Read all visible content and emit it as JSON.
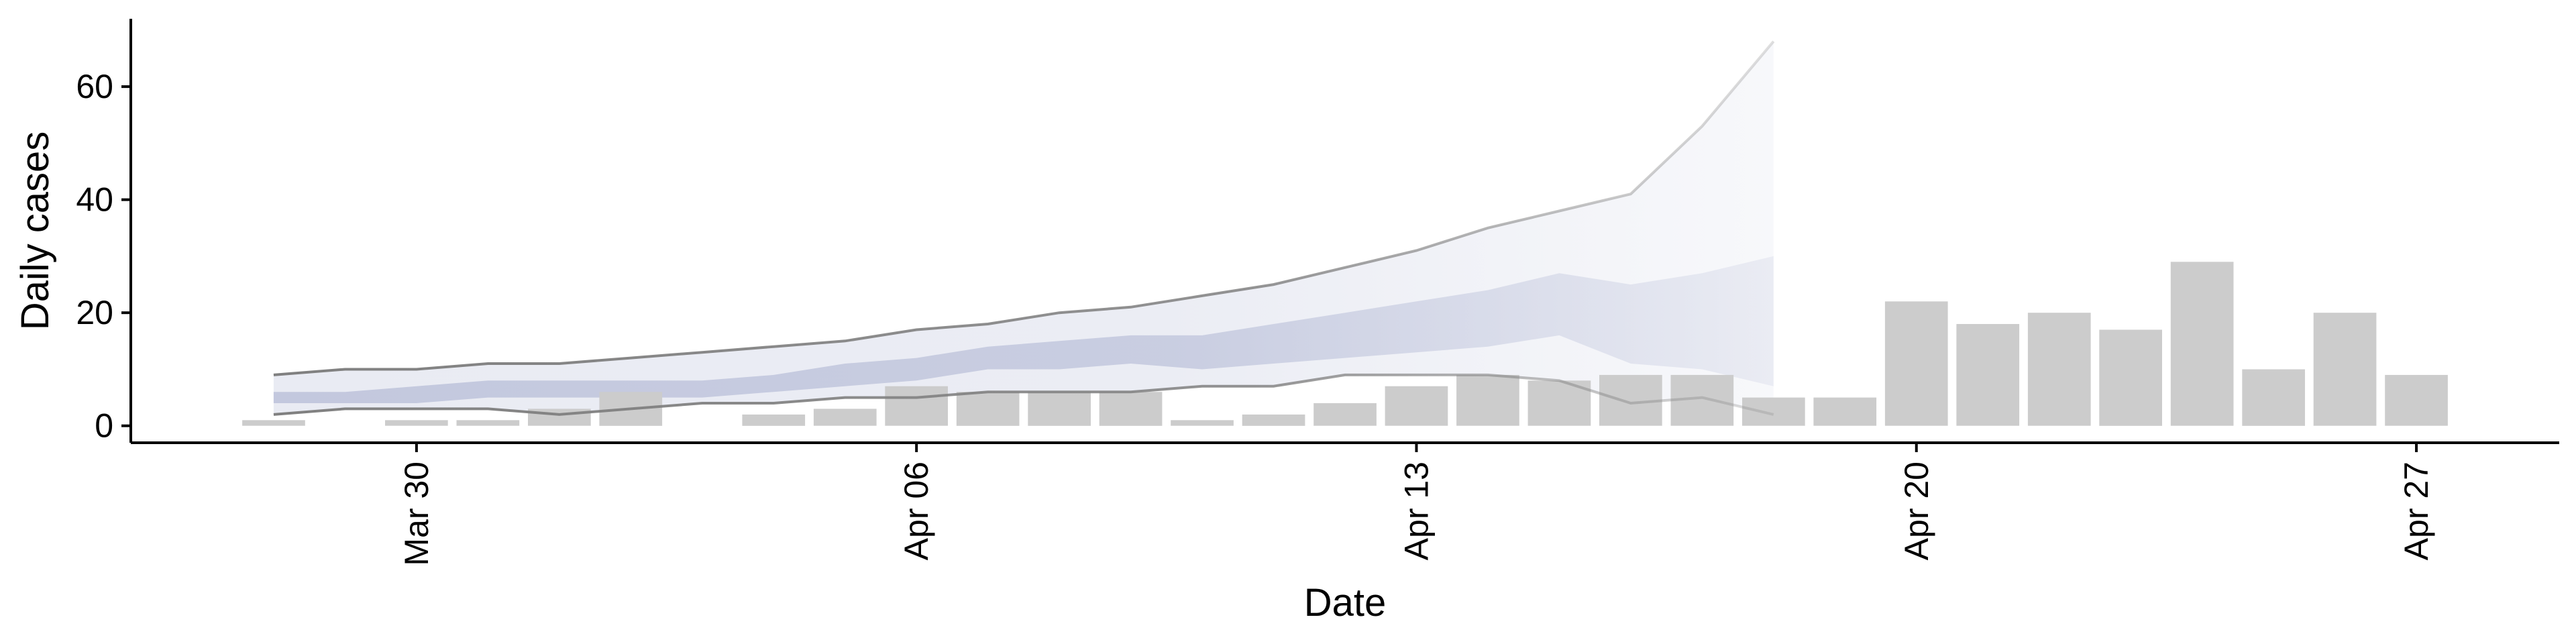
{
  "chart_data": {
    "type": "bar",
    "title": "",
    "xlabel": "Date",
    "ylabel": "Daily cases",
    "x_ticks": [
      {
        "date": "2020-03-30",
        "label": "Mar 30"
      },
      {
        "date": "2020-04-06",
        "label": "Apr 06"
      },
      {
        "date": "2020-04-13",
        "label": "Apr 13"
      },
      {
        "date": "2020-04-20",
        "label": "Apr 20"
      },
      {
        "date": "2020-04-27",
        "label": "Apr 27"
      }
    ],
    "y_ticks": [
      0,
      20,
      40,
      60
    ],
    "xlim": [
      "2020-03-26",
      "2020-04-29"
    ],
    "ylim": [
      -3,
      72
    ],
    "grid": false,
    "colors": {
      "bars": "#cccccc",
      "inner_band": "#c3c8de",
      "outer_band": "#e9ebf3",
      "lines": "#808080"
    },
    "bars": [
      {
        "date": "2020-03-28",
        "value": 1
      },
      {
        "date": "2020-03-29",
        "value": 0
      },
      {
        "date": "2020-03-30",
        "value": 1
      },
      {
        "date": "2020-03-31",
        "value": 1
      },
      {
        "date": "2020-04-01",
        "value": 3
      },
      {
        "date": "2020-04-02",
        "value": 6
      },
      {
        "date": "2020-04-03",
        "value": 0
      },
      {
        "date": "2020-04-04",
        "value": 2
      },
      {
        "date": "2020-04-05",
        "value": 3
      },
      {
        "date": "2020-04-06",
        "value": 7
      },
      {
        "date": "2020-04-07",
        "value": 6
      },
      {
        "date": "2020-04-08",
        "value": 6
      },
      {
        "date": "2020-04-09",
        "value": 6
      },
      {
        "date": "2020-04-10",
        "value": 1
      },
      {
        "date": "2020-04-11",
        "value": 2
      },
      {
        "date": "2020-04-12",
        "value": 4
      },
      {
        "date": "2020-04-13",
        "value": 7
      },
      {
        "date": "2020-04-14",
        "value": 9
      },
      {
        "date": "2020-04-15",
        "value": 8
      },
      {
        "date": "2020-04-16",
        "value": 9
      },
      {
        "date": "2020-04-17",
        "value": 9
      },
      {
        "date": "2020-04-18",
        "value": 5
      },
      {
        "date": "2020-04-19",
        "value": 5
      },
      {
        "date": "2020-04-20",
        "value": 22
      },
      {
        "date": "2020-04-21",
        "value": 18
      },
      {
        "date": "2020-04-22",
        "value": 20
      },
      {
        "date": "2020-04-23",
        "value": 17
      },
      {
        "date": "2020-04-24",
        "value": 29
      },
      {
        "date": "2020-04-25",
        "value": 10
      },
      {
        "date": "2020-04-26",
        "value": 20
      },
      {
        "date": "2020-04-27",
        "value": 9
      }
    ],
    "estimate_bands": [
      {
        "date": "2020-03-28",
        "lower90": 2,
        "upper90": 9,
        "lower50": 4,
        "upper50": 6
      },
      {
        "date": "2020-03-29",
        "lower90": 3,
        "upper90": 10,
        "lower50": 4,
        "upper50": 6
      },
      {
        "date": "2020-03-30",
        "lower90": 3,
        "upper90": 10,
        "lower50": 4,
        "upper50": 7
      },
      {
        "date": "2020-03-31",
        "lower90": 3,
        "upper90": 11,
        "lower50": 5,
        "upper50": 8
      },
      {
        "date": "2020-04-01",
        "lower90": 2,
        "upper90": 11,
        "lower50": 5,
        "upper50": 8
      },
      {
        "date": "2020-04-02",
        "lower90": 3,
        "upper90": 12,
        "lower50": 5,
        "upper50": 8
      },
      {
        "date": "2020-04-03",
        "lower90": 4,
        "upper90": 13,
        "lower50": 5,
        "upper50": 8
      },
      {
        "date": "2020-04-04",
        "lower90": 4,
        "upper90": 14,
        "lower50": 6,
        "upper50": 9
      },
      {
        "date": "2020-04-05",
        "lower90": 5,
        "upper90": 15,
        "lower50": 7,
        "upper50": 11
      },
      {
        "date": "2020-04-06",
        "lower90": 5,
        "upper90": 17,
        "lower50": 8,
        "upper50": 12
      },
      {
        "date": "2020-04-07",
        "lower90": 6,
        "upper90": 18,
        "lower50": 10,
        "upper50": 14
      },
      {
        "date": "2020-04-08",
        "lower90": 6,
        "upper90": 20,
        "lower50": 10,
        "upper50": 15
      },
      {
        "date": "2020-04-09",
        "lower90": 6,
        "upper90": 21,
        "lower50": 11,
        "upper50": 16
      },
      {
        "date": "2020-04-10",
        "lower90": 7,
        "upper90": 23,
        "lower50": 10,
        "upper50": 16
      },
      {
        "date": "2020-04-11",
        "lower90": 7,
        "upper90": 25,
        "lower50": 11,
        "upper50": 18
      },
      {
        "date": "2020-04-12",
        "lower90": 9,
        "upper90": 28,
        "lower50": 12,
        "upper50": 20
      },
      {
        "date": "2020-04-13",
        "lower90": 9,
        "upper90": 31,
        "lower50": 13,
        "upper50": 22
      },
      {
        "date": "2020-04-14",
        "lower90": 9,
        "upper90": 35,
        "lower50": 14,
        "upper50": 24
      },
      {
        "date": "2020-04-15",
        "lower90": 8,
        "upper90": 38,
        "lower50": 16,
        "upper50": 27
      },
      {
        "date": "2020-04-16",
        "lower90": 4,
        "upper90": 41,
        "lower50": 11,
        "upper50": 25
      },
      {
        "date": "2020-04-17",
        "lower90": 5,
        "upper90": 53,
        "lower50": 10,
        "upper50": 27
      },
      {
        "date": "2020-04-18",
        "lower90": 2,
        "upper90": 68,
        "lower50": 7,
        "upper50": 30
      }
    ]
  }
}
